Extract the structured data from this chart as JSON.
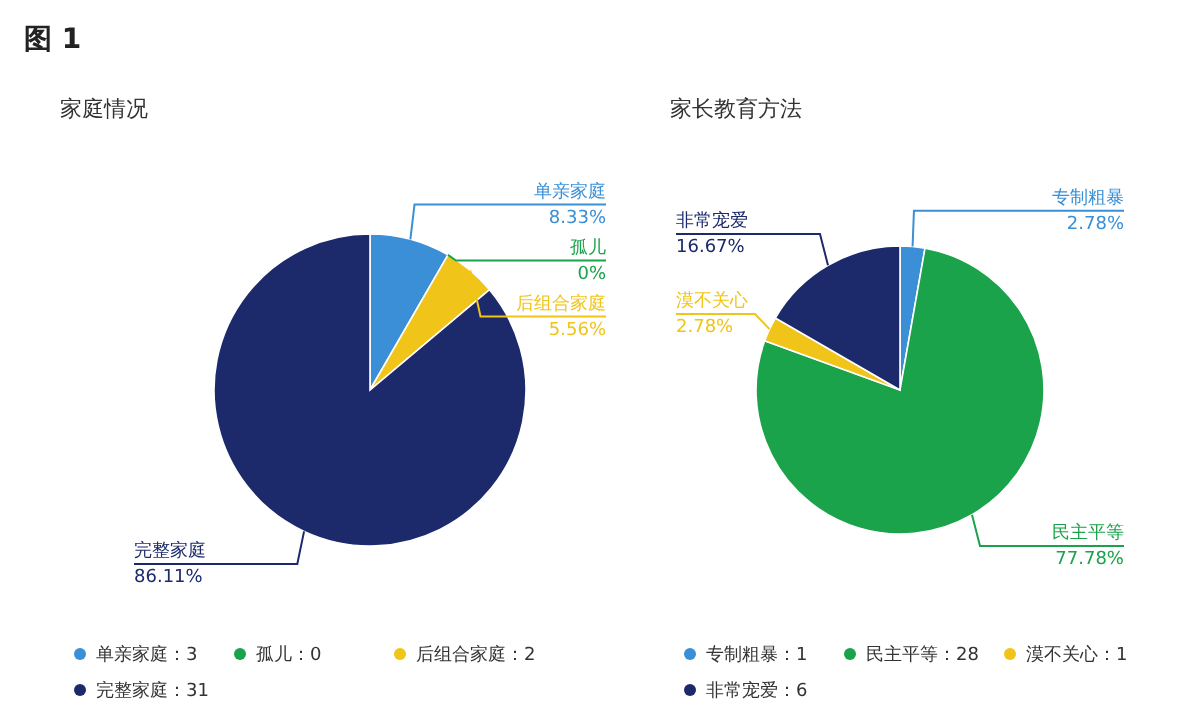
{
  "chart_data": [
    {
      "type": "pie",
      "title": "家庭情况",
      "annotations": [
        "单亲家庭：3",
        "孤儿：0",
        "后组合家庭：2",
        "完整家庭：31",
        "图 1"
      ],
      "categories": [
        "单亲家庭",
        "孤儿",
        "后组合家庭",
        "完整家庭"
      ],
      "values": [
        8.33,
        0,
        5.56,
        86.11
      ],
      "value_labels": [
        "8.33%",
        "0%",
        "5.56%",
        "86.11%"
      ],
      "colors": [
        "#3a8fd6",
        "#1aa34a",
        "#f0c419",
        "#1c2a6b"
      ]
    },
    {
      "type": "pie",
      "title": "家长教育方法",
      "annotations": [
        "专制粗暴：1",
        "民主平等：28",
        "漠不关心：1",
        "非常宠爱：6"
      ],
      "categories": [
        "专制粗暴",
        "民主平等",
        "漠不关心",
        "非常宠爱"
      ],
      "values": [
        2.78,
        77.78,
        2.78,
        16.67
      ],
      "value_labels": [
        "2.78%",
        "77.78%",
        "2.78%",
        "16.67%"
      ],
      "colors": [
        "#3a8fd6",
        "#1aa34a",
        "#f0c419",
        "#1c2a6b"
      ]
    }
  ]
}
